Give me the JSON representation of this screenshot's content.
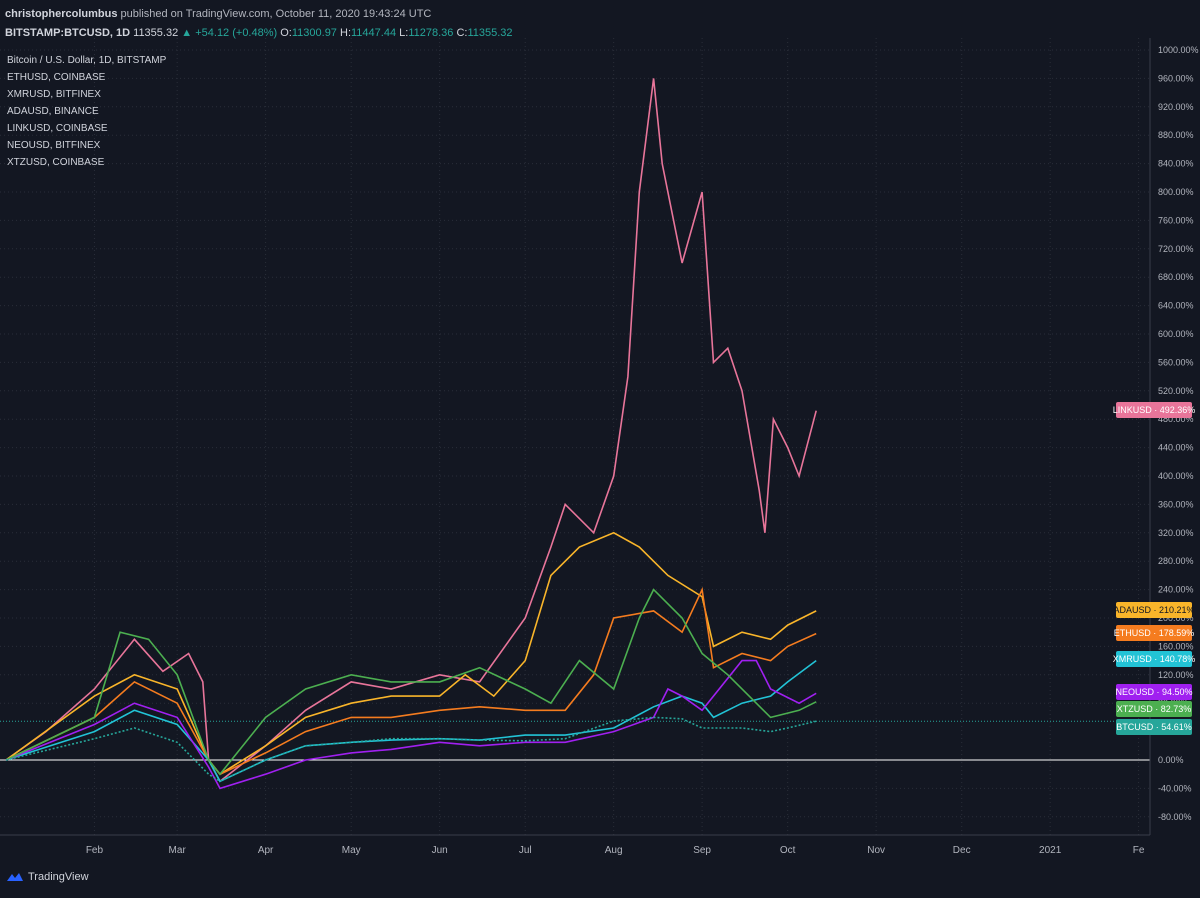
{
  "header": {
    "author": "christophercolumbus",
    "published": "published on TradingView.com, October 11, 2020 19:43:24 UTC",
    "symbol": "BITSTAMP:BTCUSD, 1D",
    "last": "11355.32",
    "change": "▲ +54.12 (+0.48%)",
    "o_label": "O:",
    "o_value": "11300.97",
    "h_label": "H:",
    "h_value": "11447.44",
    "l_label": "L:",
    "l_value": "11278.36",
    "c_label": "C:",
    "c_value": "11355.32"
  },
  "legend": {
    "title": "Bitcoin / U.S. Dollar, 1D, BITSTAMP",
    "items": [
      "ETHUSD, COINBASE",
      "XMRUSD, BITFINEX",
      "ADAUSD, BINANCE",
      "LINKUSD, COINBASE",
      "NEOUSD, BITFINEX",
      "XTZUSD, COINBASE"
    ]
  },
  "footer": {
    "brand": "TradingView",
    "icon": "tradingview-logo-icon"
  },
  "colors": {
    "background": "#131722",
    "grid": "#2a2e39",
    "text": "#b2b5be",
    "zero_line": "#ffffff",
    "LINKUSD": "#e8759a",
    "ADAUSD": "#f9b52a",
    "ETHUSD": "#f57c1f",
    "XMRUSD": "#22c3d6",
    "NEOUSD": "#a020f0",
    "XTZUSD": "#4caf50",
    "BTCUSD": "#26a69a"
  },
  "chart_data": {
    "type": "line",
    "ylabel_unit": "%",
    "ylim": [
      -100,
      1000
    ],
    "y_ticks": [
      "1000.00%",
      "960.00%",
      "920.00%",
      "880.00%",
      "840.00%",
      "800.00%",
      "760.00%",
      "720.00%",
      "680.00%",
      "640.00%",
      "600.00%",
      "560.00%",
      "520.00%",
      "480.00%",
      "440.00%",
      "400.00%",
      "360.00%",
      "320.00%",
      "280.00%",
      "240.00%",
      "200.00%",
      "160.00%",
      "120.00%",
      "80.00%",
      "0.00%",
      "-40.00%",
      "-80.00%"
    ],
    "x_ticks": [
      "Feb",
      "Mar",
      "Apr",
      "May",
      "Jun",
      "Jul",
      "Aug",
      "Sep",
      "Oct",
      "Nov",
      "Dec",
      "2021",
      "Fe"
    ],
    "x_range": [
      "2020-01-01",
      "2021-02-05"
    ],
    "grid": true,
    "series": [
      {
        "name": "LINKUSD",
        "value_label": "492.36%",
        "points": [
          [
            "2020-01-01",
            0
          ],
          [
            "2020-01-15",
            40
          ],
          [
            "2020-02-01",
            100
          ],
          [
            "2020-02-15",
            170
          ],
          [
            "2020-02-25",
            125
          ],
          [
            "2020-03-05",
            150
          ],
          [
            "2020-03-10",
            110
          ],
          [
            "2020-03-12",
            0
          ],
          [
            "2020-03-16",
            -30
          ],
          [
            "2020-04-01",
            20
          ],
          [
            "2020-04-15",
            70
          ],
          [
            "2020-05-01",
            110
          ],
          [
            "2020-05-15",
            100
          ],
          [
            "2020-06-01",
            120
          ],
          [
            "2020-06-15",
            110
          ],
          [
            "2020-07-01",
            200
          ],
          [
            "2020-07-10",
            300
          ],
          [
            "2020-07-15",
            360
          ],
          [
            "2020-07-25",
            320
          ],
          [
            "2020-08-01",
            400
          ],
          [
            "2020-08-06",
            540
          ],
          [
            "2020-08-10",
            800
          ],
          [
            "2020-08-15",
            960
          ],
          [
            "2020-08-18",
            840
          ],
          [
            "2020-08-25",
            700
          ],
          [
            "2020-09-01",
            800
          ],
          [
            "2020-09-05",
            560
          ],
          [
            "2020-09-10",
            580
          ],
          [
            "2020-09-15",
            520
          ],
          [
            "2020-09-21",
            380
          ],
          [
            "2020-09-23",
            320
          ],
          [
            "2020-09-26",
            480
          ],
          [
            "2020-10-01",
            440
          ],
          [
            "2020-10-05",
            400
          ],
          [
            "2020-10-11",
            492
          ]
        ]
      },
      {
        "name": "ADAUSD",
        "value_label": "210.21%",
        "points": [
          [
            "2020-01-01",
            0
          ],
          [
            "2020-02-01",
            90
          ],
          [
            "2020-02-15",
            120
          ],
          [
            "2020-03-01",
            100
          ],
          [
            "2020-03-12",
            0
          ],
          [
            "2020-03-16",
            -20
          ],
          [
            "2020-04-01",
            20
          ],
          [
            "2020-04-15",
            60
          ],
          [
            "2020-05-01",
            80
          ],
          [
            "2020-05-15",
            90
          ],
          [
            "2020-06-01",
            90
          ],
          [
            "2020-06-10",
            120
          ],
          [
            "2020-06-20",
            90
          ],
          [
            "2020-07-01",
            140
          ],
          [
            "2020-07-10",
            260
          ],
          [
            "2020-07-20",
            300
          ],
          [
            "2020-08-01",
            320
          ],
          [
            "2020-08-10",
            300
          ],
          [
            "2020-08-20",
            260
          ],
          [
            "2020-09-01",
            230
          ],
          [
            "2020-09-05",
            160
          ],
          [
            "2020-09-15",
            180
          ],
          [
            "2020-09-25",
            170
          ],
          [
            "2020-10-01",
            190
          ],
          [
            "2020-10-11",
            210
          ]
        ]
      },
      {
        "name": "ETHUSD",
        "value_label": "178.59%",
        "points": [
          [
            "2020-01-01",
            0
          ],
          [
            "2020-02-01",
            60
          ],
          [
            "2020-02-15",
            110
          ],
          [
            "2020-03-01",
            80
          ],
          [
            "2020-03-12",
            0
          ],
          [
            "2020-03-16",
            -20
          ],
          [
            "2020-04-01",
            10
          ],
          [
            "2020-04-15",
            40
          ],
          [
            "2020-05-01",
            60
          ],
          [
            "2020-05-15",
            60
          ],
          [
            "2020-06-01",
            70
          ],
          [
            "2020-06-15",
            75
          ],
          [
            "2020-07-01",
            70
          ],
          [
            "2020-07-15",
            70
          ],
          [
            "2020-07-25",
            120
          ],
          [
            "2020-08-01",
            200
          ],
          [
            "2020-08-15",
            210
          ],
          [
            "2020-08-25",
            180
          ],
          [
            "2020-09-01",
            240
          ],
          [
            "2020-09-05",
            130
          ],
          [
            "2020-09-15",
            150
          ],
          [
            "2020-09-25",
            140
          ],
          [
            "2020-10-01",
            160
          ],
          [
            "2020-10-11",
            178
          ]
        ]
      },
      {
        "name": "XMRUSD",
        "value_label": "140.78%",
        "points": [
          [
            "2020-01-01",
            0
          ],
          [
            "2020-02-01",
            40
          ],
          [
            "2020-02-15",
            70
          ],
          [
            "2020-03-01",
            50
          ],
          [
            "2020-03-12",
            0
          ],
          [
            "2020-03-16",
            -30
          ],
          [
            "2020-04-01",
            0
          ],
          [
            "2020-04-15",
            20
          ],
          [
            "2020-05-01",
            25
          ],
          [
            "2020-05-15",
            28
          ],
          [
            "2020-06-01",
            30
          ],
          [
            "2020-06-15",
            28
          ],
          [
            "2020-07-01",
            35
          ],
          [
            "2020-07-15",
            35
          ],
          [
            "2020-08-01",
            45
          ],
          [
            "2020-08-15",
            75
          ],
          [
            "2020-08-25",
            90
          ],
          [
            "2020-09-01",
            80
          ],
          [
            "2020-09-05",
            60
          ],
          [
            "2020-09-15",
            80
          ],
          [
            "2020-09-25",
            90
          ],
          [
            "2020-10-01",
            110
          ],
          [
            "2020-10-11",
            140
          ]
        ]
      },
      {
        "name": "NEOUSD",
        "value_label": "94.50%",
        "points": [
          [
            "2020-01-01",
            0
          ],
          [
            "2020-02-01",
            50
          ],
          [
            "2020-02-15",
            80
          ],
          [
            "2020-03-01",
            60
          ],
          [
            "2020-03-12",
            -10
          ],
          [
            "2020-03-16",
            -40
          ],
          [
            "2020-04-01",
            -20
          ],
          [
            "2020-04-15",
            0
          ],
          [
            "2020-05-01",
            10
          ],
          [
            "2020-05-15",
            15
          ],
          [
            "2020-06-01",
            25
          ],
          [
            "2020-06-15",
            20
          ],
          [
            "2020-07-01",
            25
          ],
          [
            "2020-07-15",
            25
          ],
          [
            "2020-08-01",
            40
          ],
          [
            "2020-08-15",
            60
          ],
          [
            "2020-08-20",
            100
          ],
          [
            "2020-08-25",
            90
          ],
          [
            "2020-09-01",
            70
          ],
          [
            "2020-09-15",
            140
          ],
          [
            "2020-09-20",
            140
          ],
          [
            "2020-09-25",
            100
          ],
          [
            "2020-10-05",
            80
          ],
          [
            "2020-10-11",
            94
          ]
        ]
      },
      {
        "name": "XTZUSD",
        "value_label": "82.73%",
        "points": [
          [
            "2020-01-01",
            0
          ],
          [
            "2020-02-01",
            60
          ],
          [
            "2020-02-10",
            180
          ],
          [
            "2020-02-20",
            170
          ],
          [
            "2020-03-01",
            120
          ],
          [
            "2020-03-12",
            0
          ],
          [
            "2020-03-16",
            -20
          ],
          [
            "2020-04-01",
            60
          ],
          [
            "2020-04-15",
            100
          ],
          [
            "2020-05-01",
            120
          ],
          [
            "2020-05-15",
            110
          ],
          [
            "2020-06-01",
            110
          ],
          [
            "2020-06-15",
            130
          ],
          [
            "2020-07-01",
            100
          ],
          [
            "2020-07-10",
            80
          ],
          [
            "2020-07-20",
            140
          ],
          [
            "2020-08-01",
            100
          ],
          [
            "2020-08-10",
            200
          ],
          [
            "2020-08-15",
            240
          ],
          [
            "2020-08-25",
            200
          ],
          [
            "2020-09-01",
            150
          ],
          [
            "2020-09-10",
            120
          ],
          [
            "2020-09-20",
            80
          ],
          [
            "2020-09-25",
            60
          ],
          [
            "2020-10-05",
            70
          ],
          [
            "2020-10-11",
            82
          ]
        ]
      },
      {
        "name": "BTCUSD",
        "value_label": "54.61%",
        "points": [
          [
            "2020-01-01",
            0
          ],
          [
            "2020-02-01",
            30
          ],
          [
            "2020-02-15",
            45
          ],
          [
            "2020-03-01",
            25
          ],
          [
            "2020-03-12",
            -20
          ],
          [
            "2020-03-16",
            -30
          ],
          [
            "2020-04-01",
            0
          ],
          [
            "2020-04-15",
            20
          ],
          [
            "2020-05-01",
            25
          ],
          [
            "2020-05-15",
            30
          ],
          [
            "2020-06-01",
            30
          ],
          [
            "2020-06-15",
            28
          ],
          [
            "2020-07-01",
            27
          ],
          [
            "2020-07-15",
            30
          ],
          [
            "2020-08-01",
            55
          ],
          [
            "2020-08-15",
            60
          ],
          [
            "2020-08-25",
            58
          ],
          [
            "2020-09-01",
            45
          ],
          [
            "2020-09-15",
            45
          ],
          [
            "2020-09-25",
            40
          ],
          [
            "2020-10-01",
            45
          ],
          [
            "2020-10-11",
            54.61
          ]
        ]
      }
    ]
  }
}
